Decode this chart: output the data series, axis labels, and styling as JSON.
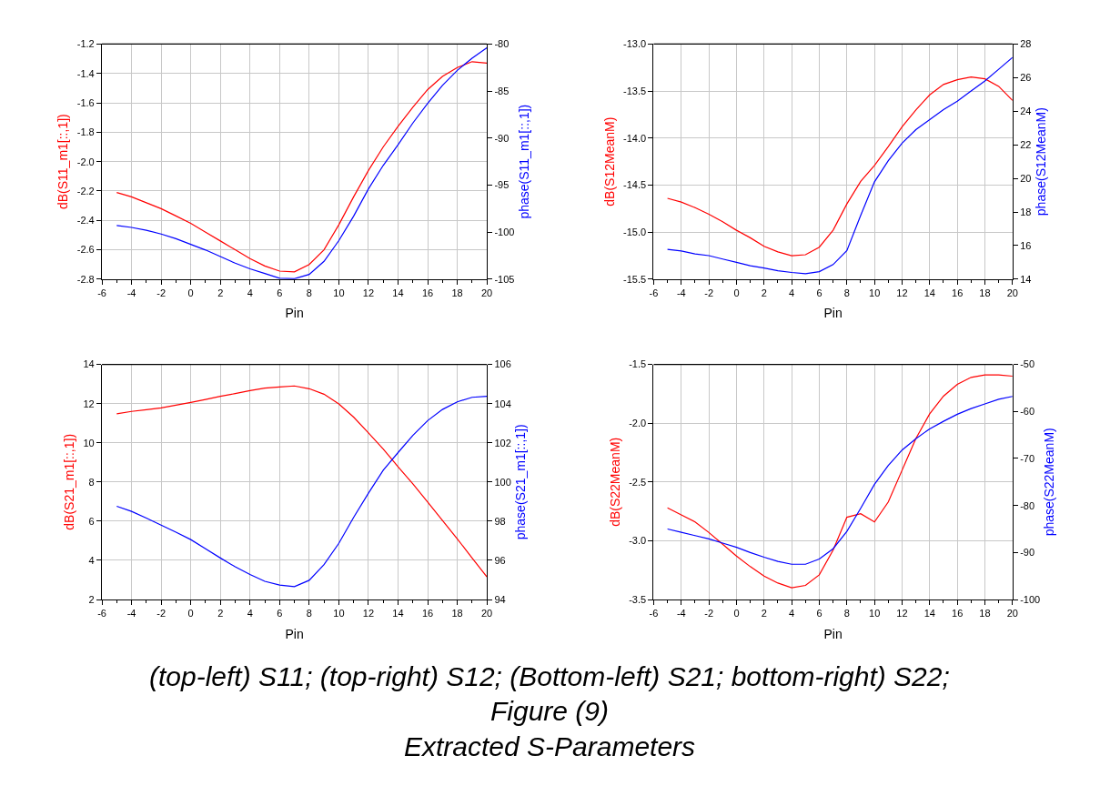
{
  "chart_data": [
    {
      "type": "line",
      "xlabel": "Pin",
      "ylabel": "dB(S11_m1[::,1])",
      "y2label": "phase(S11_m1[::,1])",
      "grid": true,
      "x": [
        -5,
        -4,
        -3,
        -2,
        -1,
        0,
        1,
        2,
        3,
        4,
        5,
        6,
        7,
        8,
        9,
        10,
        11,
        12,
        13,
        14,
        15,
        16,
        17,
        18,
        19,
        20
      ],
      "xlim": [
        -6,
        20
      ],
      "xticks": [
        -6,
        -4,
        -2,
        0,
        2,
        4,
        6,
        8,
        10,
        12,
        14,
        16,
        18,
        20
      ],
      "ylim": [
        -2.8,
        -1.2
      ],
      "yticks": [
        -2.8,
        -2.6,
        -2.4,
        -2.2,
        {
          "value": -2.0,
          "label": "-2.0"
        },
        -1.8,
        -1.6,
        -1.4,
        -1.2
      ],
      "y2lim": [
        -105,
        -80
      ],
      "y2ticks": [
        -105,
        -100,
        -95,
        -90,
        -85,
        -80
      ],
      "series": [
        {
          "color": "#ff0000",
          "values": [
            -2.21,
            -2.24,
            -2.28,
            -2.32,
            -2.37,
            -2.42,
            -2.48,
            -2.54,
            -2.6,
            -2.66,
            -2.71,
            -2.745,
            -2.75,
            -2.7,
            -2.6,
            -2.43,
            -2.24,
            -2.06,
            -1.9,
            -1.76,
            -1.63,
            -1.51,
            -1.42,
            -1.36,
            -1.32,
            -1.33
          ]
        },
        {
          "color": "#0000ff",
          "axis": "y2",
          "values": [
            -99.3,
            -99.5,
            -99.8,
            -100.2,
            -100.7,
            -101.3,
            -101.9,
            -102.6,
            -103.3,
            -103.9,
            -104.4,
            -104.9,
            -104.95,
            -104.5,
            -103.1,
            -100.9,
            -98.3,
            -95.4,
            -92.9,
            -90.7,
            -88.4,
            -86.3,
            -84.4,
            -82.8,
            -81.5,
            -80.4
          ]
        }
      ]
    },
    {
      "type": "line",
      "xlabel": "Pin",
      "ylabel": "dB(S12MeanM)",
      "y2label": "phase(S12MeanM)",
      "grid": true,
      "x": [
        -5,
        -4,
        -3,
        -2,
        -1,
        0,
        1,
        2,
        3,
        4,
        5,
        6,
        7,
        8,
        9,
        10,
        11,
        12,
        13,
        14,
        15,
        16,
        17,
        18,
        19,
        20
      ],
      "xlim": [
        -6,
        20
      ],
      "xticks": [
        -6,
        -4,
        -2,
        0,
        2,
        4,
        6,
        8,
        10,
        12,
        14,
        16,
        18,
        20
      ],
      "ylim": [
        -15.5,
        -13.0
      ],
      "yticks": [
        -15.5,
        {
          "value": -15.0,
          "label": "-15.0"
        },
        -14.5,
        {
          "value": -14.0,
          "label": "-14.0"
        },
        -13.5,
        {
          "value": -13.0,
          "label": "-13.0"
        }
      ],
      "y2lim": [
        14,
        28
      ],
      "y2ticks": [
        14,
        16,
        18,
        20,
        22,
        24,
        26,
        28
      ],
      "series": [
        {
          "color": "#ff0000",
          "values": [
            -14.64,
            -14.68,
            -14.74,
            -14.81,
            -14.89,
            -14.98,
            -15.06,
            -15.15,
            -15.21,
            -15.25,
            -15.24,
            -15.16,
            -14.98,
            -14.7,
            -14.46,
            -14.29,
            -14.09,
            -13.88,
            -13.7,
            -13.54,
            -13.43,
            -13.38,
            -13.35,
            -13.37,
            -13.45,
            -13.6
          ]
        },
        {
          "color": "#0000ff",
          "axis": "y2",
          "values": [
            15.77,
            15.68,
            15.5,
            15.4,
            15.2,
            15.0,
            14.8,
            14.66,
            14.5,
            14.4,
            14.33,
            14.45,
            14.87,
            15.7,
            17.8,
            19.8,
            21.05,
            22.1,
            22.9,
            23.5,
            24.1,
            24.6,
            25.2,
            25.8,
            26.5,
            27.2
          ]
        }
      ]
    },
    {
      "type": "line",
      "xlabel": "Pin",
      "ylabel": "dB(S21_m1[::,1])",
      "y2label": "phase(S21_m1[::,1])",
      "grid": true,
      "x": [
        -5,
        -4,
        -3,
        -2,
        -1,
        0,
        1,
        2,
        3,
        4,
        5,
        6,
        7,
        8,
        9,
        10,
        11,
        12,
        13,
        14,
        15,
        16,
        17,
        18,
        19,
        20
      ],
      "xlim": [
        -6,
        20
      ],
      "xticks": [
        -6,
        -4,
        -2,
        0,
        2,
        4,
        6,
        8,
        10,
        12,
        14,
        16,
        18,
        20
      ],
      "ylim": [
        2,
        14
      ],
      "yticks": [
        2,
        4,
        6,
        8,
        10,
        12,
        14
      ],
      "y2lim": [
        94,
        106
      ],
      "y2ticks": [
        94,
        96,
        98,
        100,
        102,
        104,
        106
      ],
      "series": [
        {
          "color": "#ff0000",
          "values": [
            11.48,
            11.6,
            11.69,
            11.78,
            11.92,
            12.06,
            12.21,
            12.37,
            12.51,
            12.66,
            12.79,
            12.85,
            12.9,
            12.76,
            12.48,
            11.98,
            11.31,
            10.5,
            9.68,
            8.78,
            7.9,
            6.97,
            6.03,
            5.1,
            4.12,
            3.16
          ]
        },
        {
          "color": "#0000ff",
          "axis": "y2",
          "values": [
            98.76,
            98.5,
            98.16,
            97.8,
            97.44,
            97.06,
            96.59,
            96.12,
            95.67,
            95.28,
            94.93,
            94.74,
            94.66,
            94.98,
            95.78,
            96.87,
            98.19,
            99.43,
            100.6,
            101.5,
            102.38,
            103.13,
            103.7,
            104.09,
            104.32,
            104.37
          ]
        }
      ]
    },
    {
      "type": "line",
      "xlabel": "Pin",
      "ylabel": "dB(S22MeanM)",
      "y2label": "phase(S22MeanM)",
      "grid": true,
      "x": [
        -5,
        -4,
        -3,
        -2,
        -1,
        0,
        1,
        2,
        3,
        4,
        5,
        6,
        7,
        8,
        9,
        10,
        11,
        12,
        13,
        14,
        15,
        16,
        17,
        18,
        19,
        20
      ],
      "xlim": [
        -6,
        20
      ],
      "xticks": [
        -6,
        -4,
        -2,
        0,
        2,
        4,
        6,
        8,
        10,
        12,
        14,
        16,
        18,
        20
      ],
      "ylim": [
        -3.5,
        -1.5
      ],
      "yticks": [
        -3.5,
        {
          "value": -3.0,
          "label": "-3.0"
        },
        -2.5,
        {
          "value": -2.0,
          "label": "-2.0"
        },
        -1.5
      ],
      "y2lim": [
        -100,
        -50
      ],
      "y2ticks": [
        -100,
        -90,
        -80,
        -70,
        -60,
        -50
      ],
      "series": [
        {
          "color": "#ff0000",
          "values": [
            -2.72,
            -2.78,
            -2.84,
            -2.93,
            -3.03,
            -3.13,
            -3.22,
            -3.3,
            -3.36,
            -3.4,
            -3.38,
            -3.29,
            -3.08,
            -2.8,
            -2.77,
            -2.84,
            -2.67,
            -2.4,
            -2.13,
            -1.92,
            -1.77,
            -1.67,
            -1.61,
            -1.59,
            -1.59,
            -1.6
          ]
        },
        {
          "color": "#0000ff",
          "axis": "y2",
          "values": [
            -85.0,
            -85.7,
            -86.4,
            -87.1,
            -88.0,
            -88.9,
            -90.0,
            -91.0,
            -91.9,
            -92.5,
            -92.5,
            -91.4,
            -89.2,
            -85.5,
            -80.6,
            -75.5,
            -71.5,
            -68.2,
            -65.8,
            -63.7,
            -62.1,
            -60.6,
            -59.4,
            -58.4,
            -57.4,
            -56.8
          ]
        }
      ],
      "annotations": [
        "(top-left) S11; (top-right) S12; (Bottom-left) S21; bottom-right) S22;",
        "Figure (9)",
        "Extracted S-Parameters"
      ]
    }
  ]
}
